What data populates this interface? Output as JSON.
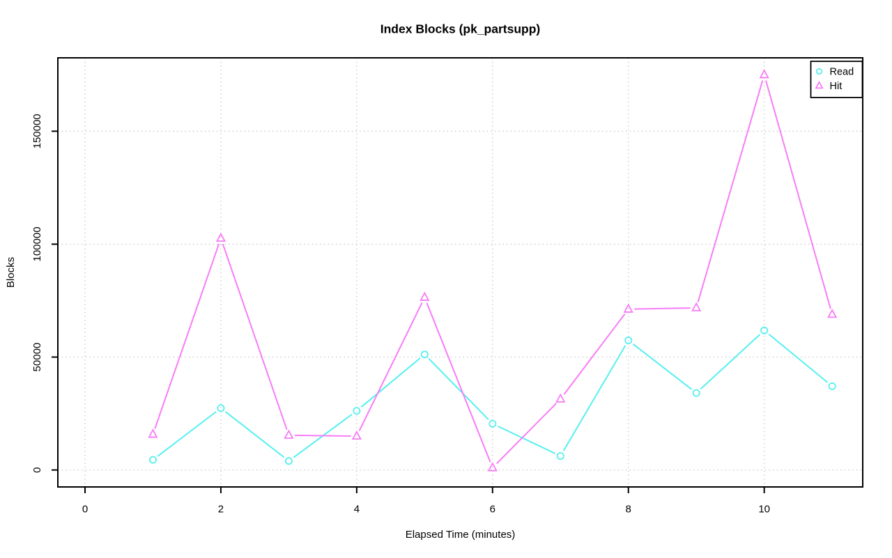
{
  "title": "Index Blocks (pk_partsupp)",
  "chart_data": {
    "type": "line",
    "title": "Index Blocks (pk_partsupp)",
    "xlabel": "Elapsed Time (minutes)",
    "ylabel": "Blocks",
    "x": [
      1,
      2,
      3,
      4,
      5,
      6,
      7,
      8,
      9,
      10,
      11
    ],
    "series": [
      {
        "name": "Read",
        "marker": "circle",
        "color": "#57EFEF",
        "values": [
          4500,
          27400,
          4000,
          26200,
          51200,
          20500,
          6200,
          57400,
          34100,
          61800,
          37100
        ]
      },
      {
        "name": "Hit",
        "marker": "triangle",
        "color": "#F87CF8",
        "values": [
          15800,
          102600,
          15400,
          15000,
          76400,
          1000,
          31400,
          71200,
          71800,
          175000,
          68900
        ]
      }
    ],
    "x_ticks": [
      0,
      2,
      4,
      6,
      8,
      10
    ],
    "y_ticks": [
      0,
      50000,
      100000,
      150000
    ],
    "xlim": [
      -0.4,
      11.45
    ],
    "ylim": [
      -7500,
      182500
    ],
    "grid": true,
    "grid_color": "#C4C4C4",
    "axis_color": "#000000",
    "background": "#FFFFFF",
    "legend_position": "top-right"
  },
  "legend": {
    "items": [
      {
        "label": "Read",
        "marker": "circle",
        "color": "#57EFEF"
      },
      {
        "label": "Hit",
        "marker": "triangle",
        "color": "#F87CF8"
      }
    ]
  }
}
